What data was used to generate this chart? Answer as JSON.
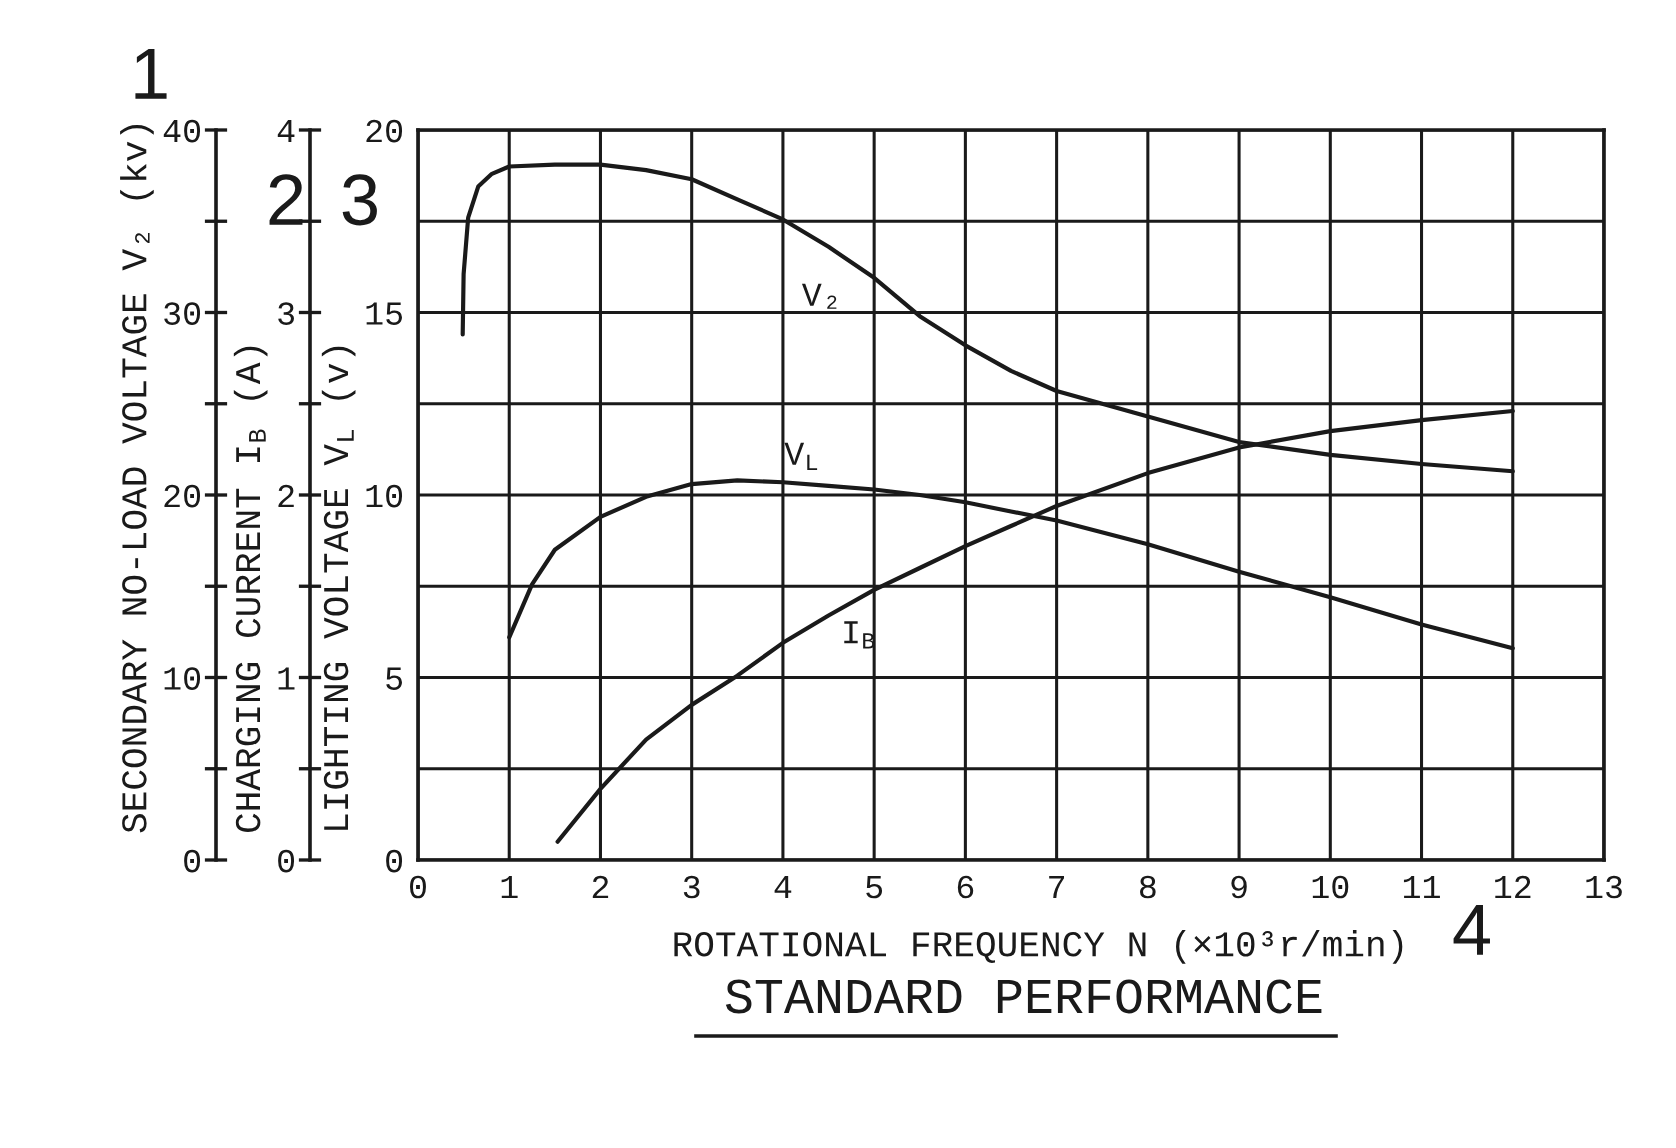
{
  "chart_data": {
    "type": "line",
    "title": "STANDARD PERFORMANCE",
    "xlabel": "ROTATIONAL FREQUENCY N (×10³r/min)",
    "ylabel": "LIGHTING VOLTAGE V$_{L}$ (v)",
    "y2label": "CHARGING CURRENT I$_{B}$ (A)",
    "y3label": "SECONDARY NO-LOAD VOLTAGE V₂ (kv)",
    "annotations": [
      "1",
      "2",
      "3",
      "4"
    ],
    "xlim": [
      0,
      13
    ],
    "xticks": [
      0,
      1,
      2,
      3,
      4,
      5,
      6,
      7,
      8,
      9,
      10,
      11,
      12,
      13
    ],
    "ylim": [
      0,
      20
    ],
    "yticks": [
      0,
      {
        "value": 2.5,
        "label": null
      },
      5,
      {
        "value": 7.5,
        "label": null
      },
      10,
      {
        "value": 12.5,
        "label": null
      },
      15,
      {
        "value": 17.5,
        "label": null
      },
      20
    ],
    "y2lim": [
      0,
      4
    ],
    "y2ticks": [
      0,
      {
        "value": 0.5,
        "label": null
      },
      1,
      {
        "value": 1.5,
        "label": null
      },
      2,
      {
        "value": 2.5,
        "label": null
      },
      3,
      {
        "value": 3.5,
        "label": null
      },
      4
    ],
    "y3lim": [
      0,
      40
    ],
    "y3ticks": [
      0,
      {
        "value": 5,
        "label": null
      },
      10,
      {
        "value": 15,
        "label": null
      },
      20,
      {
        "value": 25,
        "label": null
      },
      30,
      {
        "value": 35,
        "label": null
      },
      40
    ],
    "grid": true,
    "series": [
      {
        "name": "V₂",
        "color": "#1a1a1a",
        "axis": "y3",
        "x": [
          0.49,
          0.5,
          0.55,
          0.66,
          0.81,
          1,
          1.5,
          2,
          2.5,
          3,
          3.5,
          4,
          4.5,
          5,
          5.5,
          6,
          6.5,
          7,
          8,
          9,
          10,
          11,
          12
        ],
        "values": [
          28.8,
          32.1,
          35.2,
          36.9,
          37.6,
          38.0,
          38.1,
          38.1,
          37.8,
          37.3,
          36.2,
          35.1,
          33.6,
          31.9,
          29.8,
          28.2,
          26.8,
          25.7,
          24.3,
          22.9,
          22.2,
          21.7,
          21.3
        ]
      },
      {
        "name": "V$_{L}$",
        "color": "#1a1a1a",
        "axis": "y",
        "x": [
          1,
          1.25,
          1.5,
          2,
          2.5,
          3,
          3.5,
          4,
          4.5,
          5,
          5.5,
          6,
          6.5,
          7,
          8,
          9,
          10,
          11,
          12
        ],
        "values": [
          6.1,
          7.55,
          8.5,
          9.4,
          9.95,
          10.3,
          10.4,
          10.35,
          10.25,
          10.15,
          10.0,
          9.8,
          9.55,
          9.3,
          8.65,
          7.9,
          7.2,
          6.45,
          5.8
        ]
      },
      {
        "name": "I$_{B}$",
        "color": "#1a1a1a",
        "axis": "y2",
        "x": [
          1.53,
          2,
          2.5,
          3,
          3.5,
          4,
          4.5,
          5,
          5.5,
          6,
          6.5,
          7,
          8,
          9,
          10,
          11,
          12
        ],
        "values": [
          0.1,
          0.39,
          0.66,
          0.85,
          1.01,
          1.19,
          1.34,
          1.48,
          1.6,
          1.72,
          1.83,
          1.94,
          2.12,
          2.26,
          2.35,
          2.41,
          2.46
        ]
      }
    ]
  }
}
